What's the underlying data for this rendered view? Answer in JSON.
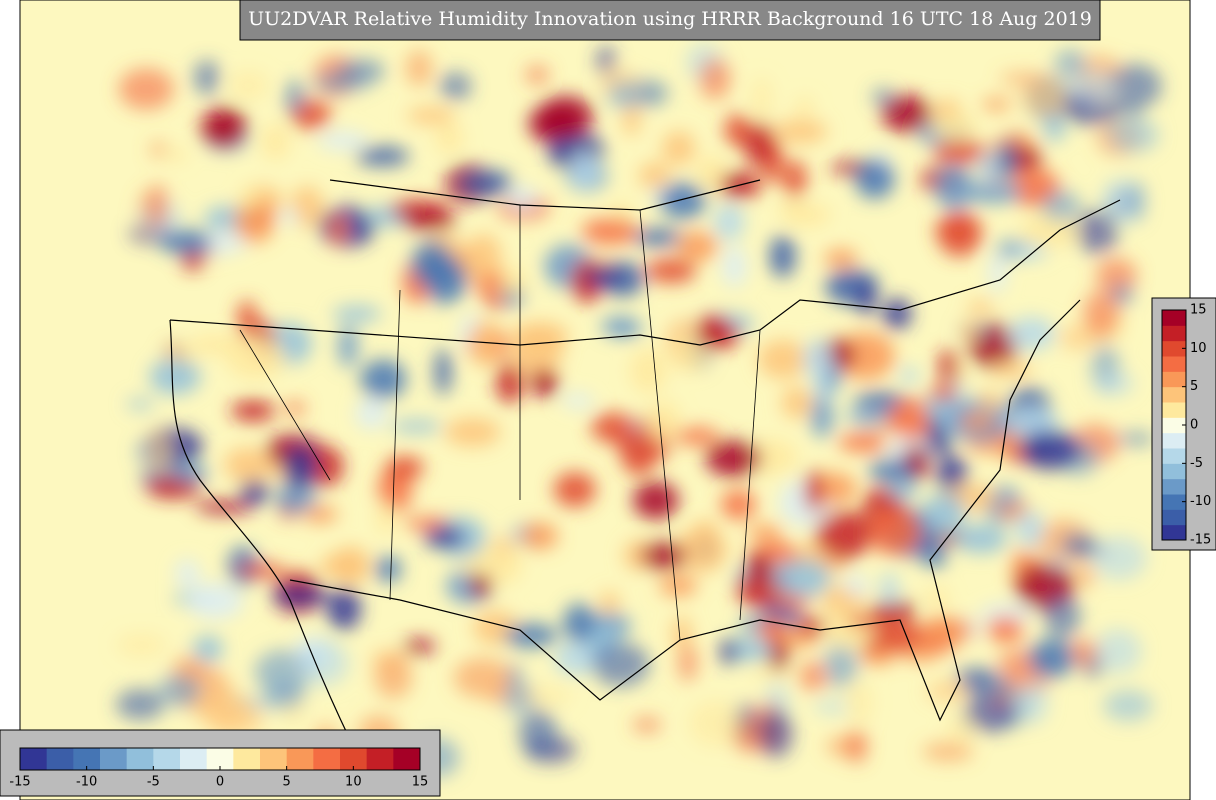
{
  "title": "UU2DVAR Relative Humidity Innovation using HRRR Background 16 UTC 18 Aug 2019",
  "colorbar": {
    "range": [
      -15,
      15
    ],
    "ticks": [
      -15,
      -10,
      -5,
      0,
      5,
      10,
      15
    ],
    "colors": [
      "#313695",
      "#3b5ea8",
      "#4575b4",
      "#6b9ac8",
      "#91bfdb",
      "#b5d8e9",
      "#dcedf3",
      "#fbfde6",
      "#fee99e",
      "#fdc47a",
      "#f99858",
      "#f46d43",
      "#e0492e",
      "#c41f26",
      "#a50026"
    ]
  }
}
